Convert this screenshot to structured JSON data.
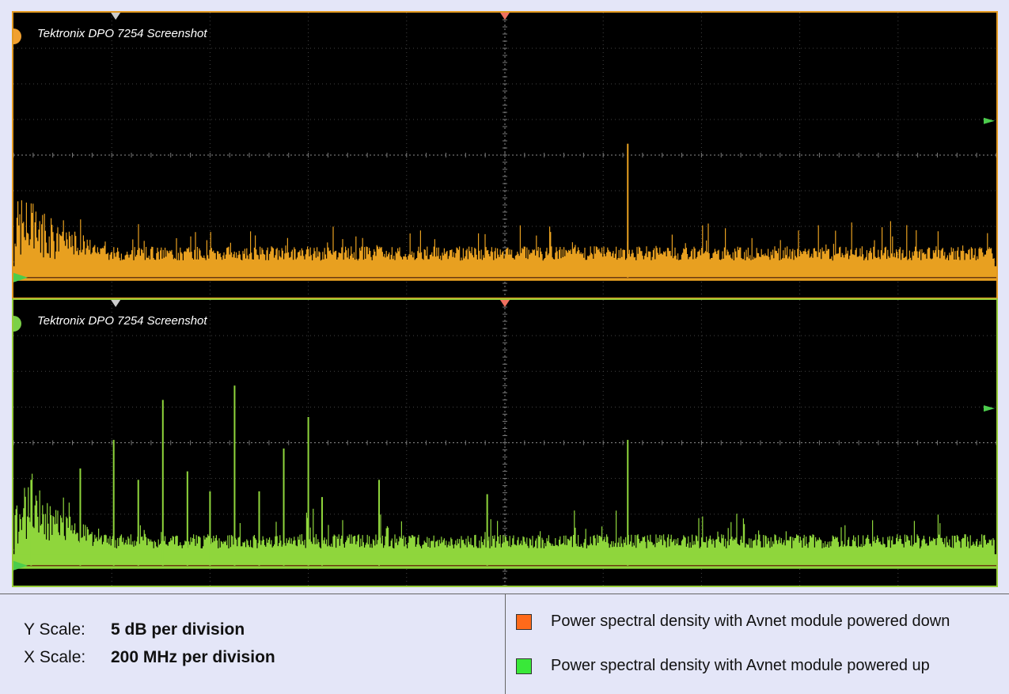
{
  "panels": [
    {
      "caption": "Tektronix DPO 7254 Screenshot",
      "trace_color": "#e8a020",
      "frame_color": "#e49a20",
      "marker_color": "#f0a030",
      "key_spike": {
        "label": "spike",
        "relative_height": 0.47
      }
    },
    {
      "caption": "Tektronix DPO 7254 Screenshot",
      "trace_color": "#8fd63c",
      "frame_color": "#96cc38",
      "marker_color": "#7bd048",
      "key_spike": {
        "label": "spike",
        "relative_height": 0.44
      }
    }
  ],
  "scales": {
    "y_label": "Y Scale:",
    "y_value": "5 dB per division",
    "x_label": "X Scale:",
    "x_value": "200 MHz per division"
  },
  "legend": [
    {
      "color": "#ff6a1a",
      "text": "Power spectral density with Avnet module powered down"
    },
    {
      "color": "#39e839",
      "text": "Power spectral density with Avnet module powered up"
    }
  ],
  "chart_data": [
    {
      "type": "area",
      "title": "Tektronix DPO 7254 Screenshot",
      "series": [
        {
          "name": "Power spectral density with Avnet module powered down",
          "color": "#e8a020"
        }
      ],
      "ylabel": "5 dB per division",
      "xlabel": "200 MHz per division",
      "grid": true
    },
    {
      "type": "area",
      "title": "Tektronix DPO 7254 Screenshot",
      "series": [
        {
          "name": "Power spectral density with Avnet module powered up",
          "color": "#8fd63c"
        }
      ],
      "ylabel": "5 dB per division",
      "xlabel": "200 MHz per division",
      "grid": true
    }
  ]
}
